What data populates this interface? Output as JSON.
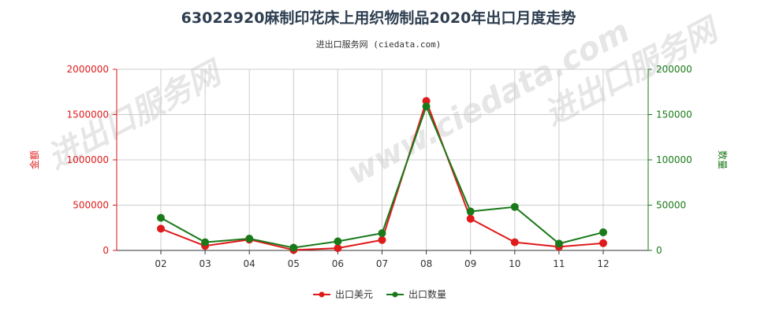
{
  "chart_data": {
    "type": "line",
    "title": "63022920麻制印花床上用织物制品2020年出口月度走势",
    "subtitle": "进出口服务网 (ciedata.com)",
    "categories": [
      "02",
      "03",
      "04",
      "05",
      "06",
      "07",
      "08",
      "09",
      "10",
      "11",
      "12"
    ],
    "y_left": {
      "label": "金额",
      "ticks": [
        "0",
        "500000",
        "1000000",
        "1500000",
        "2000000"
      ],
      "lim": [
        0,
        2000000
      ],
      "color": "#e01a1a"
    },
    "y_right": {
      "label": "数量",
      "ticks": [
        "0",
        "50000",
        "100000",
        "150000",
        "200000"
      ],
      "lim": [
        0,
        200000
      ],
      "color": "#1a7a1a"
    },
    "series": [
      {
        "name": "出口美元",
        "axis": "left",
        "color": "#e01a1a",
        "values": [
          240000,
          50000,
          120000,
          5000,
          25000,
          115000,
          1650000,
          350000,
          90000,
          40000,
          80000
        ]
      },
      {
        "name": "出口数量",
        "axis": "right",
        "color": "#1a7a1a",
        "values": [
          36000,
          9000,
          13000,
          3000,
          10000,
          19000,
          159000,
          43000,
          48000,
          7500,
          20000
        ]
      }
    ],
    "grid": true,
    "legend_position": "bottom-center"
  }
}
